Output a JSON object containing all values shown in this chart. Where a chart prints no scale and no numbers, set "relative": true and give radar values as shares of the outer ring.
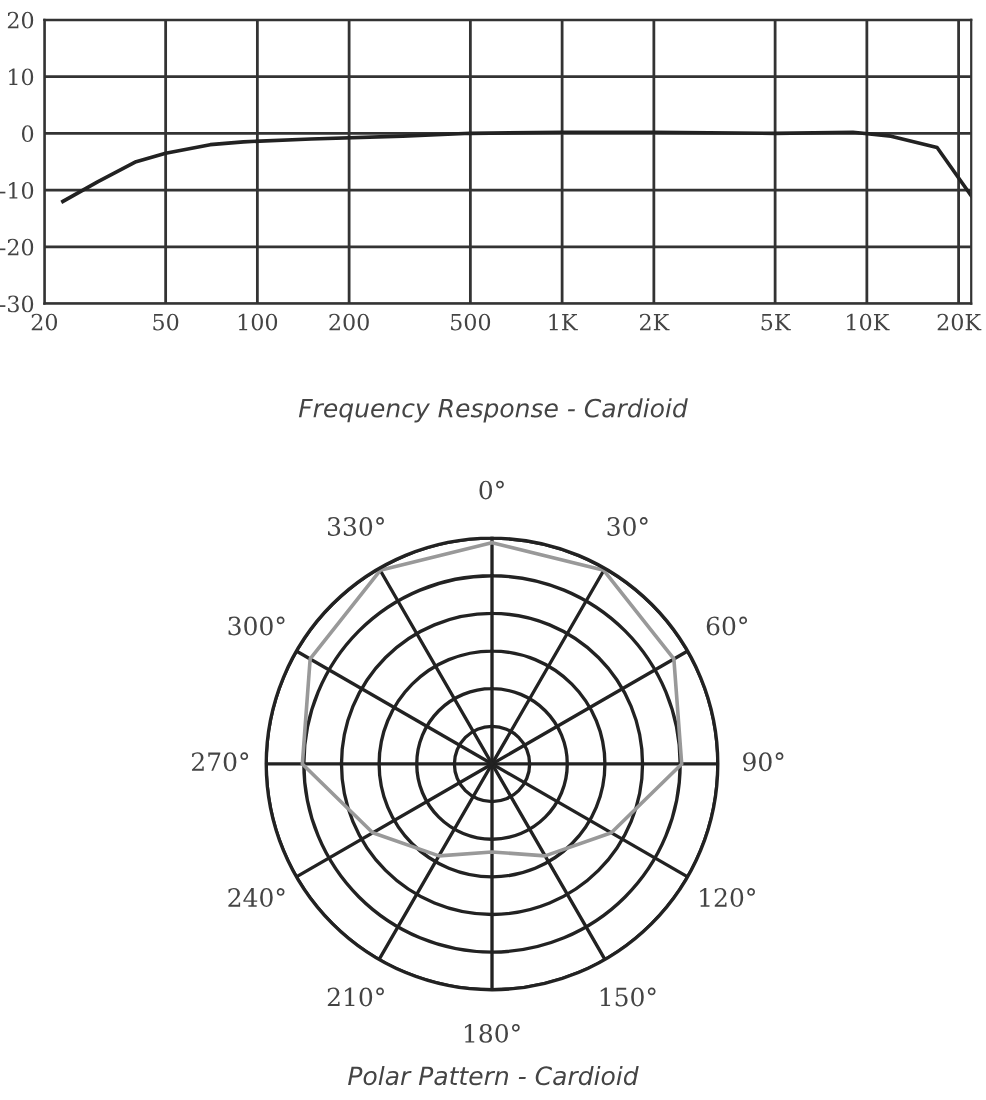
{
  "chart_data": [
    {
      "type": "line",
      "title": "Frequency Response - Cardioid",
      "log": "x",
      "grid": true,
      "xlim": [
        20,
        22000
      ],
      "xticks": [
        20,
        50,
        100,
        200,
        500,
        {
          "value": 1000,
          "label": "1K"
        },
        {
          "value": 2000,
          "label": "2K"
        },
        {
          "value": 5000,
          "label": "5K"
        },
        {
          "value": 10000,
          "label": "10K"
        },
        {
          "value": 20000,
          "label": "20K"
        }
      ],
      "ylim": [
        -30,
        20
      ],
      "yticks": [
        -30,
        -20,
        -10,
        0,
        10,
        20
      ],
      "series": [
        {
          "color": "#222222",
          "x": [
            23,
            30,
            40,
            50,
            70,
            90,
            150,
            300,
            500,
            1000,
            2000,
            5000,
            9000,
            12000,
            17000,
            22000
          ],
          "values": [
            -12,
            -8.5,
            -5,
            -3.5,
            -2,
            -1.5,
            -1,
            -0.5,
            0,
            0.2,
            0.2,
            0,
            0.2,
            -0.5,
            -2.5,
            -11
          ]
        }
      ]
    },
    {
      "type": "radar",
      "title": "Polar Pattern - Cardioid",
      "relative": true,
      "grid": true,
      "categories": [
        "0°",
        "30°",
        "60°",
        "90°",
        "120°",
        "150°",
        "180°",
        "210°",
        "240°",
        "270°",
        "300°",
        "330°"
      ],
      "series": [
        {
          "color": "#999999",
          "values": [
            0.98,
            0.99,
            0.93,
            0.84,
            0.61,
            0.47,
            0.39,
            0.47,
            0.61,
            0.84,
            0.93,
            0.99
          ]
        }
      ]
    }
  ]
}
